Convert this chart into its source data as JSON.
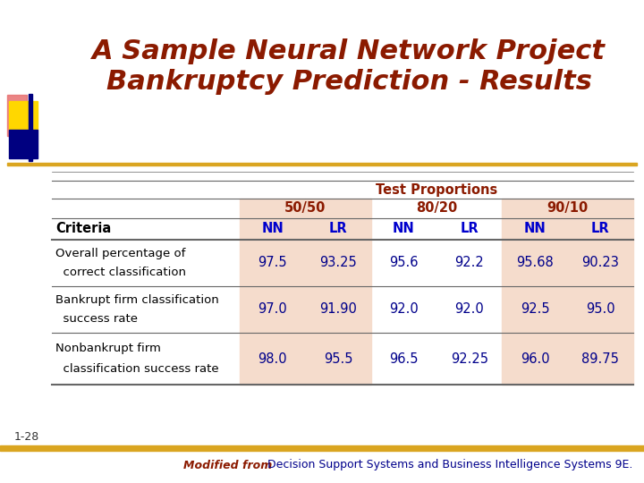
{
  "title_line1": "A Sample Neural Network Project",
  "title_line2": "Bankruptcy Prediction - Results",
  "title_color": "#8B1A00",
  "title_fontsize": 22,
  "bg_color": "#FFFFFF",
  "header_color": "#8B1A00",
  "header_label": "Test Proportions",
  "col_groups": [
    "50/50",
    "80/20",
    "90/10"
  ],
  "col_group_color": "#8B1A00",
  "col_subheaders": [
    "NN",
    "LR",
    "NN",
    "LR",
    "NN",
    "LR"
  ],
  "col_subheader_color": "#0000CD",
  "criteria_label": "Criteria",
  "criteria_color": "#000000",
  "row_labels_line1": [
    "Overall percentage of",
    "Bankrupt firm classification",
    "Nonbankrupt firm"
  ],
  "row_labels_line2": [
    "  correct classification",
    "  success rate",
    "  classification success rate"
  ],
  "row_label_color": "#000000",
  "data_color": "#00008B",
  "table_data": [
    [
      "97.5",
      "93.25",
      "95.6",
      "92.2",
      "95.68",
      "90.23"
    ],
    [
      "97.0",
      "91.90",
      "92.0",
      "92.0",
      "92.5",
      "95.0"
    ],
    [
      "98.0",
      "95.5",
      "96.5",
      "92.25",
      "96.0",
      "89.75"
    ]
  ],
  "shaded_col_bg": "#F5DCCC",
  "footer_slide_num": "1-28",
  "footer_modified": "Modified from",
  "footer_rest": " Decision Support Systems and Business Intelligence Systems 9E.",
  "footer_modified_color": "#8B1A00",
  "footer_rest_color": "#00008B",
  "accent_gold": "#DAA520",
  "accent_blue": "#000080",
  "accent_yellow": "#FFD700",
  "accent_pink": "#E87070"
}
